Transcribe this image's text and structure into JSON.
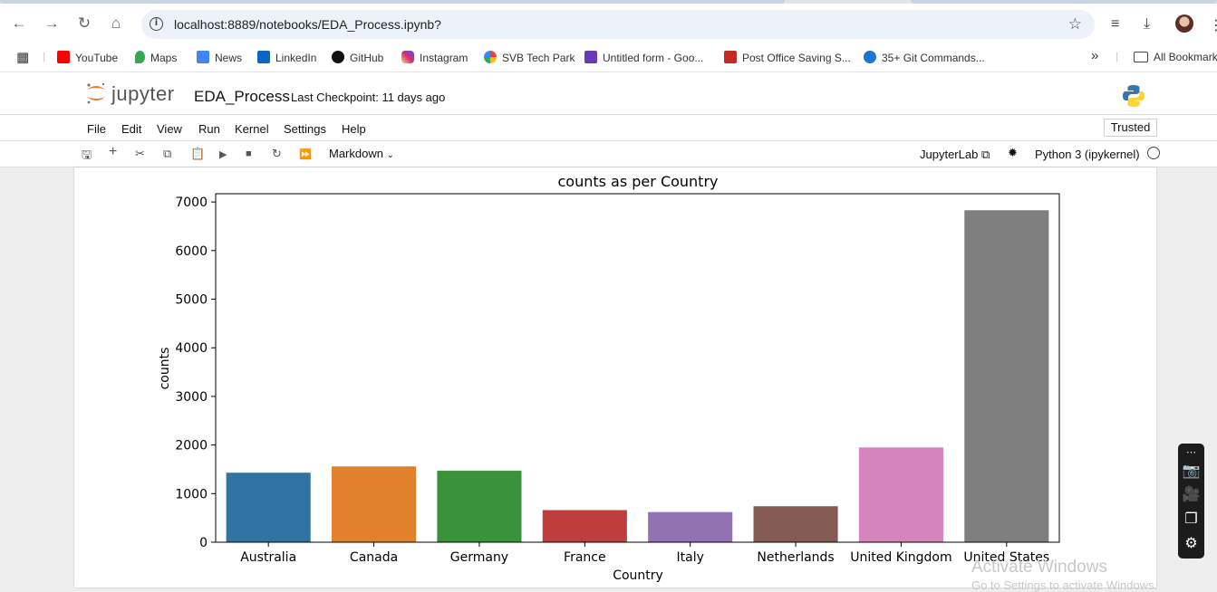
{
  "browser": {
    "url": "localhost:8889/notebooks/EDA_Process.ipynb?",
    "bookmarks": [
      {
        "label": "YouTube",
        "icon": "youtube-icon",
        "color": "#ff0000"
      },
      {
        "label": "Maps",
        "icon": "maps-icon",
        "color": "#34a853"
      },
      {
        "label": "News",
        "icon": "news-icon",
        "color": "#4285f4"
      },
      {
        "label": "LinkedIn",
        "icon": "linkedin-icon",
        "color": "#0a66c2"
      },
      {
        "label": "GitHub",
        "icon": "github-icon",
        "color": "#111111"
      },
      {
        "label": "Instagram",
        "icon": "instagram-icon",
        "color": "#d62976"
      },
      {
        "label": "SVB Tech Park",
        "icon": "google-icon",
        "color": "#ea4335"
      },
      {
        "label": "Untitled form - Goo...",
        "icon": "forms-icon",
        "color": "#673ab7"
      },
      {
        "label": "Post Office Saving S...",
        "icon": "post-office-icon",
        "color": "#c62828"
      },
      {
        "label": "35+ Git Commands...",
        "icon": "git-icon",
        "color": "#1976d2"
      }
    ],
    "more": "»",
    "all_bookmarks": "All Bookmarks"
  },
  "jupyter": {
    "logo_text": "jupyter",
    "notebook_name": "EDA_Process",
    "checkpoint": "Last Checkpoint: 11 days ago",
    "menu": [
      "File",
      "Edit",
      "View",
      "Run",
      "Kernel",
      "Settings",
      "Help"
    ],
    "trusted": "Trusted",
    "cell_type": "Markdown",
    "jupyterlab": "JupyterLab",
    "kernel": "Python 3 (ipykernel)"
  },
  "watermark": {
    "line1": "Activate Windows",
    "line2": "Go to Settings to activate Windows."
  },
  "chart_data": {
    "type": "bar",
    "title": "counts as per Country",
    "xlabel": "Country",
    "ylabel": "counts",
    "categories": [
      "Australia",
      "Canada",
      "Germany",
      "France",
      "Italy",
      "Netherlands",
      "United Kingdom",
      "United States"
    ],
    "values": [
      1430,
      1560,
      1470,
      660,
      620,
      740,
      1950,
      6830
    ],
    "colors": [
      "#3274a1",
      "#e1812c",
      "#3a923a",
      "#c03d3e",
      "#9372b2",
      "#845b53",
      "#d684bd",
      "#7f7f7f"
    ],
    "yticks": [
      0,
      1000,
      2000,
      3000,
      4000,
      5000,
      6000,
      7000
    ],
    "ylim": [
      0,
      7170
    ],
    "grid": false
  }
}
